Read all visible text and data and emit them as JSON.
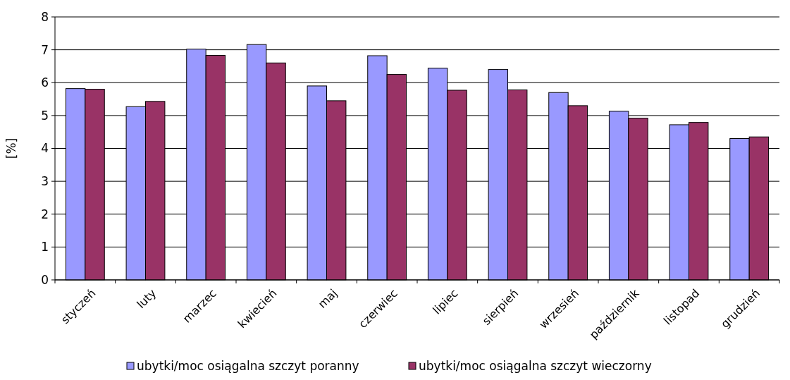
{
  "chart_data": {
    "type": "bar",
    "ylabel": "[%]",
    "categories": [
      "styczeń",
      "luty",
      "marzec",
      "kwiecień",
      "maj",
      "czerwiec",
      "lipiec",
      "sierpień",
      "wrzesień",
      "październik",
      "listopad",
      "grudzień"
    ],
    "series": [
      {
        "name": "ubytki/moc osiągalna szczyt poranny",
        "color": "#9999ff",
        "values": [
          5.82,
          5.27,
          7.02,
          7.16,
          5.9,
          6.82,
          6.44,
          6.4,
          5.7,
          5.13,
          4.72,
          4.3
        ]
      },
      {
        "name": "ubytki/moc osiągalna szczyt wieczorny",
        "color": "#993366",
        "values": [
          5.8,
          5.43,
          6.83,
          6.6,
          5.45,
          6.25,
          5.77,
          5.78,
          5.3,
          4.92,
          4.79,
          4.35
        ]
      }
    ],
    "ylim": [
      0,
      8
    ],
    "yticks": [
      0,
      1,
      2,
      3,
      4,
      5,
      6,
      7,
      8
    ],
    "grid": "y",
    "legend": "bottom"
  }
}
